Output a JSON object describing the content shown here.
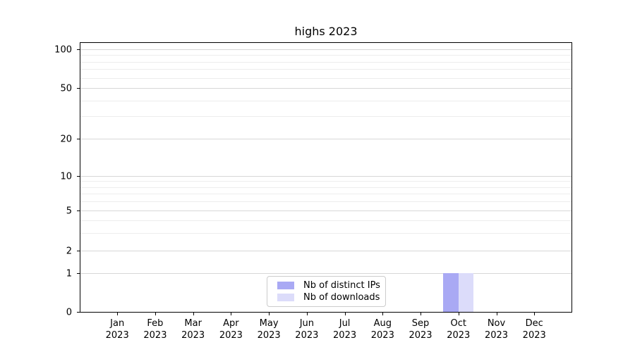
{
  "title": "highs 2023",
  "chart_data": {
    "type": "bar",
    "title": "highs 2023",
    "categories": [
      "Jan",
      "Feb",
      "Mar",
      "Apr",
      "May",
      "Jun",
      "Jul",
      "Aug",
      "Sep",
      "Oct",
      "Nov",
      "Dec"
    ],
    "category_year": "2023",
    "series": [
      {
        "name": "Nb of distinct IPs",
        "color": "#a9a9f4",
        "values": [
          0,
          0,
          0,
          0,
          0,
          0,
          0,
          0,
          0,
          1,
          0,
          0
        ]
      },
      {
        "name": "Nb of downloads",
        "color": "#dcdcfa",
        "values": [
          0,
          0,
          0,
          0,
          0,
          0,
          0,
          0,
          0,
          1,
          0,
          0
        ]
      }
    ],
    "yticks": [
      0,
      1,
      2,
      5,
      10,
      20,
      50,
      100
    ],
    "minor_yticks": [
      3,
      4,
      6,
      7,
      8,
      9,
      30,
      40,
      60,
      70,
      80,
      90
    ],
    "ylim": [
      0,
      130
    ],
    "yscale": "symlog",
    "xlabel": "",
    "ylabel": "",
    "grid": "horizontal major+minor",
    "legend_position": "lower center"
  },
  "colors": {
    "background": "#ffffff",
    "spine": "#000000",
    "major_grid": "#d7d7d7",
    "minor_grid": "#ededed",
    "legend_border": "#cccccc",
    "series_1": "#a9a9f4",
    "series_2": "#dcdcfa"
  }
}
